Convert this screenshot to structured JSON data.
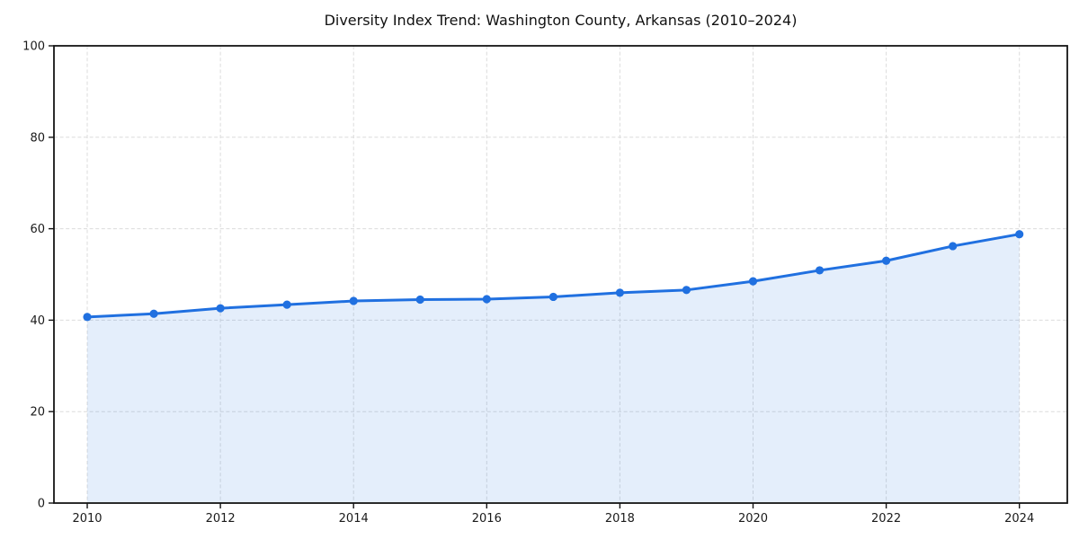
{
  "chart_data": {
    "type": "line",
    "title": "Diversity Index Trend: Washington County, Arkansas (2010–2024)",
    "x": [
      2010,
      2011,
      2012,
      2013,
      2014,
      2015,
      2016,
      2017,
      2018,
      2019,
      2020,
      2021,
      2022,
      2023,
      2024
    ],
    "series": [
      {
        "name": "Diversity Index",
        "values": [
          40.7,
          41.4,
          42.6,
          43.4,
          44.2,
          44.5,
          44.6,
          45.1,
          46.0,
          46.6,
          48.5,
          50.9,
          53.0,
          56.2,
          58.8
        ]
      }
    ],
    "xlabel": "",
    "ylabel": "",
    "xlim": [
      2009.5,
      2024.72
    ],
    "ylim": [
      0,
      100
    ],
    "xticks": [
      2010,
      2012,
      2014,
      2016,
      2018,
      2020,
      2022,
      2024
    ],
    "yticks": [
      0,
      20,
      40,
      60,
      80,
      100
    ],
    "grid": true,
    "grid_style": "dashed",
    "legend": "none",
    "area_fill": true,
    "marker": "circle",
    "colors": {
      "line": "#2070e0",
      "marker": "#2070e0",
      "fill": "#2070e0",
      "fill_opacity": 0.12,
      "grid": "#dcdcdc",
      "spine": "#141414",
      "tick_label": "#1a1a1a",
      "title": "#111111",
      "background": "#ffffff"
    }
  }
}
